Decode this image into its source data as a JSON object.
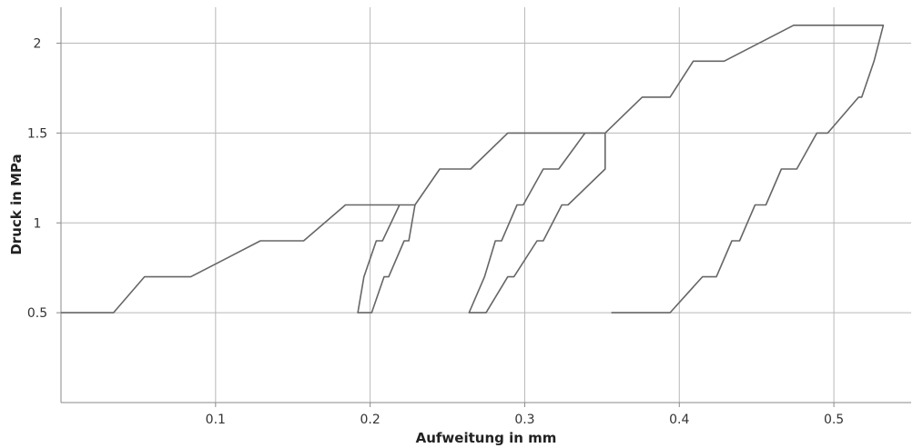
{
  "chart_data": {
    "type": "line",
    "title": "",
    "xlabel": "Aufweitung in mm",
    "ylabel": "Druck in MPa",
    "xlim": [
      0,
      0.55
    ],
    "ylim": [
      0,
      2.2
    ],
    "x_ticks": [
      0.1,
      0.2,
      0.3,
      0.4,
      0.5
    ],
    "x_tick_labels": [
      "0.1",
      "0.2",
      "0.3",
      "0.4",
      "0.5"
    ],
    "y_ticks": [
      0.5,
      1,
      1.5,
      2
    ],
    "y_tick_labels": [
      "0.5",
      "1",
      "1.5",
      "2"
    ],
    "grid": true,
    "legend": "none",
    "line_color": "#666666",
    "series": [
      {
        "points": [
          [
            0,
            0.5
          ],
          [
            0.034,
            0.5
          ],
          [
            0.054,
            0.7
          ],
          [
            0.084,
            0.7
          ],
          [
            0.129,
            0.9
          ],
          [
            0.157,
            0.9
          ],
          [
            0.184,
            1.1
          ],
          [
            0.229,
            1.1
          ],
          [
            0.225,
            0.9
          ],
          [
            0.222,
            0.9
          ],
          [
            0.212,
            0.7
          ],
          [
            0.209,
            0.7
          ],
          [
            0.201,
            0.5
          ],
          [
            0.192,
            0.5
          ],
          [
            0.196,
            0.7
          ],
          [
            0.204,
            0.9
          ],
          [
            0.208,
            0.9
          ],
          [
            0.219,
            1.1
          ],
          [
            0.229,
            1.1
          ],
          [
            0.245,
            1.3
          ],
          [
            0.265,
            1.3
          ],
          [
            0.289,
            1.5
          ],
          [
            0.352,
            1.5
          ],
          [
            0.352,
            1.3
          ],
          [
            0.328,
            1.1
          ],
          [
            0.324,
            1.1
          ],
          [
            0.312,
            0.9
          ],
          [
            0.308,
            0.9
          ],
          [
            0.293,
            0.7
          ],
          [
            0.289,
            0.7
          ],
          [
            0.275,
            0.5
          ],
          [
            0.264,
            0.5
          ],
          [
            0.274,
            0.7
          ],
          [
            0.281,
            0.9
          ],
          [
            0.285,
            0.9
          ],
          [
            0.295,
            1.1
          ],
          [
            0.299,
            1.1
          ],
          [
            0.312,
            1.3
          ],
          [
            0.322,
            1.3
          ],
          [
            0.339,
            1.5
          ],
          [
            0.352,
            1.5
          ],
          [
            0.376,
            1.7
          ],
          [
            0.394,
            1.7
          ],
          [
            0.409,
            1.9
          ],
          [
            0.429,
            1.9
          ],
          [
            0.474,
            2.1
          ],
          [
            0.532,
            2.1
          ],
          [
            0.526,
            1.9
          ],
          [
            0.518,
            1.7
          ],
          [
            0.516,
            1.7
          ],
          [
            0.496,
            1.5
          ],
          [
            0.489,
            1.5
          ],
          [
            0.476,
            1.3
          ],
          [
            0.466,
            1.3
          ],
          [
            0.456,
            1.1
          ],
          [
            0.449,
            1.1
          ],
          [
            0.439,
            0.9
          ],
          [
            0.434,
            0.9
          ],
          [
            0.424,
            0.7
          ],
          [
            0.415,
            0.7
          ],
          [
            0.394,
            0.5
          ],
          [
            0.374,
            0.5
          ],
          [
            0.356,
            0.5
          ]
        ]
      }
    ]
  }
}
